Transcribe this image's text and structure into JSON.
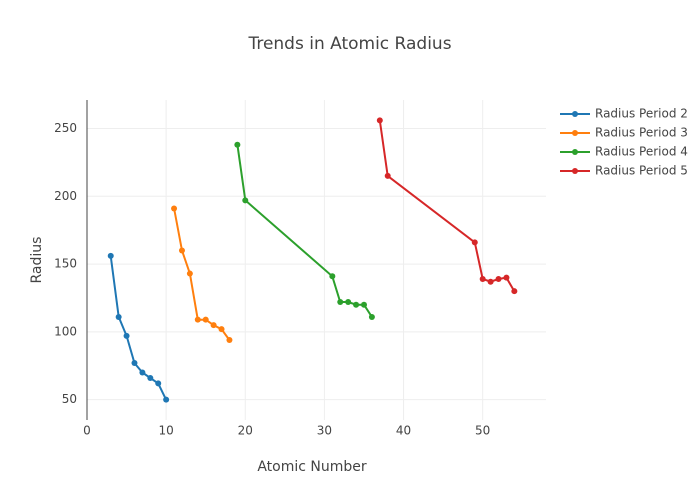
{
  "chart_data": {
    "type": "line",
    "title": "Trends in Atomic Radius",
    "x_label": "Atomic Number",
    "y_label": "Radius",
    "xlim": [
      0,
      58
    ],
    "ylim": [
      35,
      271
    ],
    "xticks": [
      0,
      10,
      20,
      30,
      40,
      50
    ],
    "yticks": [
      50,
      100,
      150,
      200,
      250
    ],
    "grid": true,
    "legend": "right",
    "series": [
      {
        "name": "Radius Period 2",
        "color": "#1f77b4",
        "x": [
          3,
          4,
          5,
          6,
          7,
          8,
          9,
          10
        ],
        "values": [
          156,
          111,
          97,
          77,
          70,
          66,
          62,
          50
        ]
      },
      {
        "name": "Radius Period 3",
        "color": "#ff7f0e",
        "x": [
          11,
          12,
          13,
          14,
          15,
          16,
          17,
          18
        ],
        "values": [
          191,
          160,
          143,
          109,
          109,
          105,
          102,
          94
        ]
      },
      {
        "name": "Radius Period 4",
        "color": "#2ca02c",
        "x": [
          19,
          20,
          31,
          32,
          33,
          34,
          35,
          36
        ],
        "values": [
          238,
          197,
          141,
          122,
          122,
          120,
          120,
          111
        ]
      },
      {
        "name": "Radius Period 5",
        "color": "#d62728",
        "x": [
          37,
          38,
          49,
          50,
          51,
          52,
          53,
          54
        ],
        "values": [
          256,
          215,
          166,
          139,
          137,
          139,
          140,
          130
        ]
      }
    ]
  }
}
